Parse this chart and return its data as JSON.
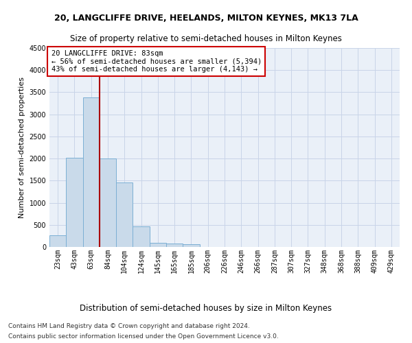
{
  "title": "20, LANGCLIFFE DRIVE, HEELANDS, MILTON KEYNES, MK13 7LA",
  "subtitle": "Size of property relative to semi-detached houses in Milton Keynes",
  "xlabel": "Distribution of semi-detached houses by size in Milton Keynes",
  "ylabel": "Number of semi-detached properties",
  "footnote1": "Contains HM Land Registry data © Crown copyright and database right 2024.",
  "footnote2": "Contains public sector information licensed under the Open Government Licence v3.0.",
  "annotation_title": "20 LANGCLIFFE DRIVE: 83sqm",
  "annotation_line1": "← 56% of semi-detached houses are smaller (5,394)",
  "annotation_line2": "43% of semi-detached houses are larger (4,143) →",
  "bar_labels": [
    "23sqm",
    "43sqm",
    "63sqm",
    "84sqm",
    "104sqm",
    "124sqm",
    "145sqm",
    "165sqm",
    "185sqm",
    "206sqm",
    "226sqm",
    "246sqm",
    "266sqm",
    "287sqm",
    "307sqm",
    "327sqm",
    "348sqm",
    "368sqm",
    "388sqm",
    "409sqm",
    "429sqm"
  ],
  "bar_values": [
    270,
    2020,
    3380,
    2000,
    1460,
    470,
    100,
    70,
    55,
    0,
    0,
    0,
    0,
    0,
    0,
    0,
    0,
    0,
    0,
    0,
    0
  ],
  "bar_color": "#c9daea",
  "bar_edge_color": "#7bafd4",
  "grid_color": "#c8d4e8",
  "background_color": "#eaf0f8",
  "red_line_bar_index": 3,
  "ylim": [
    0,
    4500
  ],
  "yticks": [
    0,
    500,
    1000,
    1500,
    2000,
    2500,
    3000,
    3500,
    4000,
    4500
  ],
  "red_line_color": "#aa0000",
  "annotation_box_facecolor": "#ffffff",
  "annotation_box_edgecolor": "#cc0000",
  "title_fontsize": 9,
  "subtitle_fontsize": 8.5,
  "ylabel_fontsize": 8,
  "xlabel_fontsize": 8.5,
  "tick_fontsize": 7,
  "annotation_fontsize": 7.5,
  "footnote_fontsize": 6.5
}
